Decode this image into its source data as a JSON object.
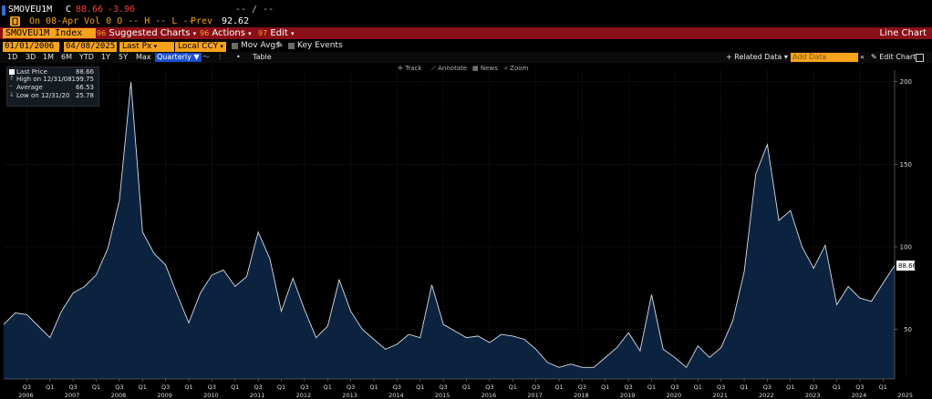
{
  "header": {
    "ticker": "SMOVEU1M",
    "c_label": "C",
    "last": "88.66",
    "change": "-3.96",
    "dash_display": "-- / --",
    "on_label": "On 08-Apr",
    "vol_text": "Vol 0 O -- H -- L --",
    "prev_label": "Prev",
    "prev_value": "92.62"
  },
  "menubar": {
    "security": "SMOVEU1M Index",
    "suggested_num": "96",
    "suggested": "Suggested Charts",
    "actions_num": "96",
    "actions": "Actions",
    "edit_num": "97",
    "edit": "Edit",
    "title_right": "Line Chart"
  },
  "controls": {
    "start_date": "01/01/2006",
    "end_date": "04/08/2025",
    "field": "Last Px",
    "currency": "Local CCY",
    "mov_avgs": "Mov Avgs",
    "key_events": "Key Events"
  },
  "toolbar": {
    "periods": [
      "1D",
      "3D",
      "1M",
      "6M",
      "YTD",
      "1Y",
      "5Y",
      "Max"
    ],
    "frequency": "Quarterly",
    "table": "Table",
    "related_data": "+ Related Data",
    "add_data_placeholder": "Add Data",
    "edit_chart": "Edit Chart",
    "track": "Track",
    "annotate": "Annotate",
    "news": "News",
    "zoom": "Zoom"
  },
  "legend": {
    "last_label": "Last Price",
    "last_value": "88.66",
    "high_label": "High on 12/31/08",
    "high_value": "199.75",
    "avg_label": "Average",
    "avg_value": "66.53",
    "low_label": "Low on 12/31/20",
    "low_value": "25.78"
  },
  "colors": {
    "line": "#d7dde6",
    "fill": "#0c2340",
    "menubar": "#8a0f16",
    "orange": "#f7a21b",
    "grid": "#3a3f47"
  },
  "chart_data": {
    "type": "area",
    "series": [
      {
        "values": [
          53,
          60,
          59,
          52,
          45,
          61,
          72,
          76,
          83,
          99,
          128,
          199.75,
          109,
          96,
          89,
          71,
          54,
          72,
          83,
          86,
          76,
          82,
          109,
          93,
          61,
          81,
          62,
          45,
          52,
          80,
          61,
          50,
          44,
          38,
          41,
          47,
          45,
          77,
          53,
          49,
          45,
          46,
          42,
          47,
          46,
          44,
          38,
          30,
          27,
          29,
          27,
          27,
          33,
          39,
          48,
          37,
          71,
          38,
          33,
          27,
          40,
          33,
          39,
          55,
          85,
          144,
          162,
          116,
          122,
          100,
          87,
          101,
          65,
          76,
          69,
          67,
          78,
          88.66
        ]
      }
    ],
    "x_quarter_labels": [
      "Q3",
      "Q1",
      "Q3",
      "Q1",
      "Q3",
      "Q1",
      "Q3",
      "Q1",
      "Q3",
      "Q1",
      "Q3",
      "Q1",
      "Q3",
      "Q1",
      "Q3",
      "Q1",
      "Q3",
      "Q1",
      "Q3",
      "Q1",
      "Q3",
      "Q1",
      "Q3",
      "Q1",
      "Q3",
      "Q1",
      "Q3",
      "Q1",
      "Q3",
      "Q1",
      "Q3",
      "Q1",
      "Q3",
      "Q1",
      "Q3",
      "Q1",
      "Q3",
      "Q1",
      "Q1"
    ],
    "x_year_labels": [
      "2006",
      "2007",
      "2008",
      "2009",
      "2010",
      "2011",
      "2012",
      "2013",
      "2014",
      "2015",
      "2016",
      "2017",
      "2018",
      "2019",
      "2020",
      "2021",
      "2022",
      "2023",
      "2024",
      "2025"
    ],
    "y_ticks": [
      50,
      100,
      150,
      200
    ],
    "ylim": [
      20,
      207
    ],
    "last_value_label": "88.66"
  }
}
